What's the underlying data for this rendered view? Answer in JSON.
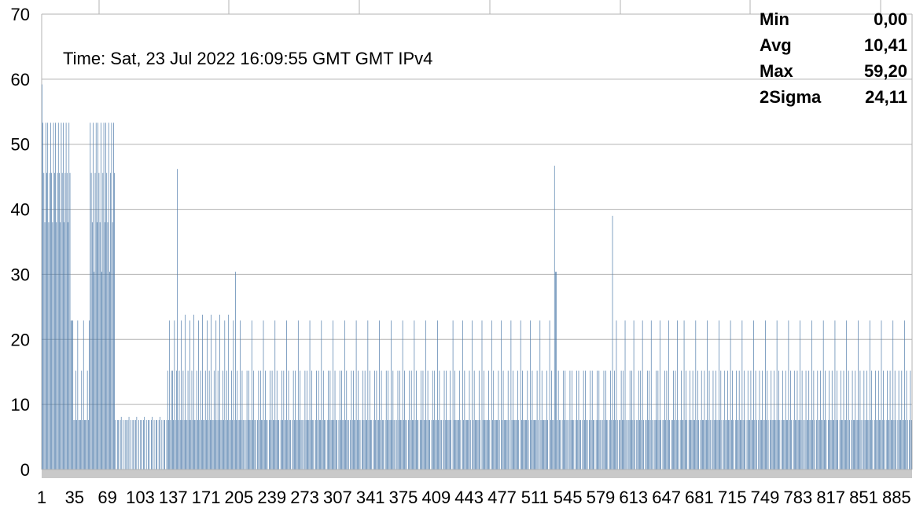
{
  "chart_data": {
    "type": "bar",
    "title": "",
    "xlabel": "",
    "ylabel": "",
    "ylim": [
      0,
      70
    ],
    "yticks": [
      "0",
      "10",
      "20",
      "30",
      "40",
      "50",
      "60",
      "70"
    ],
    "xtick_labels": [
      "1",
      "35",
      "69",
      "103",
      "137",
      "171",
      "205",
      "239",
      "273",
      "307",
      "341",
      "375",
      "409",
      "443",
      "477",
      "511",
      "545",
      "579",
      "613",
      "647",
      "681",
      "715",
      "749",
      "783",
      "817",
      "851",
      "885"
    ],
    "x_count": 900,
    "grid": true,
    "legend": "none",
    "bar_color": "#4a78a8",
    "annotation": "Time: Sat, 23 Jul 2022 16:09:55 GMT GMT IPv4",
    "stats": [
      {
        "label": "Min",
        "value": "0,00"
      },
      {
        "label": "Avg",
        "value": "10,41"
      },
      {
        "label": "Max",
        "value": "59,20"
      },
      {
        "label": "2Sigma",
        "value": "24,11"
      }
    ],
    "segments": [
      {
        "from": 1,
        "to": 1,
        "value": 59.2
      },
      {
        "from": 2,
        "to": 30,
        "pattern": [
          53.3,
          45.6,
          38.0,
          53.3,
          45.6,
          53.3,
          38.0,
          45.6
        ]
      },
      {
        "from": 31,
        "to": 33,
        "value": 22.9
      },
      {
        "from": 34,
        "to": 50,
        "pattern": [
          7.6,
          7.6,
          15.2,
          7.6,
          22.9,
          7.6
        ]
      },
      {
        "from": 51,
        "to": 76,
        "pattern": [
          53.3,
          45.6,
          38.0,
          53.3,
          30.4,
          45.6,
          53.3,
          38.0
        ]
      },
      {
        "from": 77,
        "to": 130,
        "pattern": [
          7.6,
          0,
          7.6,
          7.6,
          0,
          7.6,
          8.1,
          0
        ]
      },
      {
        "from": 131,
        "to": 140,
        "pattern": [
          15.2,
          7.6,
          22.9,
          7.6,
          15.2
        ]
      },
      {
        "from": 141,
        "to": 141,
        "value": 46.2
      },
      {
        "from": 142,
        "to": 200,
        "pattern": [
          7.6,
          15.2,
          7.6,
          22.9,
          7.6,
          15.2,
          7.6,
          23.8,
          7.6
        ]
      },
      {
        "from": 201,
        "to": 201,
        "value": 30.4
      },
      {
        "from": 202,
        "to": 420,
        "pattern": [
          7.6,
          15.2,
          7.6,
          7.6,
          22.9,
          7.6,
          15.2,
          7.6,
          7.6,
          0,
          7.6,
          15.2
        ]
      },
      {
        "from": 421,
        "to": 530,
        "pattern": [
          7.6,
          7.6,
          15.2,
          7.6,
          0,
          22.9,
          7.6,
          15.2,
          7.6,
          7.6
        ]
      },
      {
        "from": 531,
        "to": 531,
        "value": 46.7
      },
      {
        "from": 532,
        "to": 533,
        "value": 30.4
      },
      {
        "from": 534,
        "to": 590,
        "pattern": [
          7.6,
          15.2,
          7.6,
          7.6,
          0,
          7.6,
          15.2
        ]
      },
      {
        "from": 591,
        "to": 591,
        "value": 39.0
      },
      {
        "from": 592,
        "to": 660,
        "pattern": [
          7.6,
          15.2,
          7.6,
          22.9,
          7.6,
          0,
          7.6,
          7.6,
          15.2
        ]
      },
      {
        "from": 661,
        "to": 900,
        "pattern": [
          7.6,
          15.2,
          7.6,
          7.6,
          22.9,
          7.6,
          15.2,
          7.6,
          0,
          7.6,
          15.2,
          7.6
        ]
      }
    ]
  }
}
